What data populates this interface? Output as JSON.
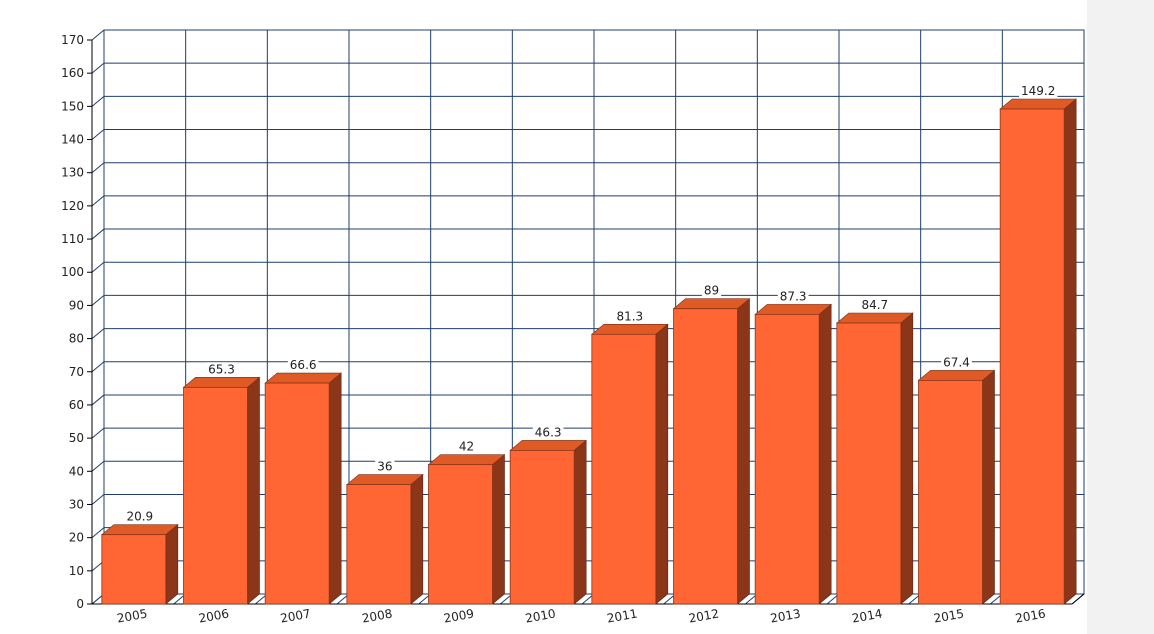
{
  "chart_data": {
    "type": "bar",
    "categories": [
      "2005",
      "2006",
      "2007",
      "2008",
      "2009",
      "2010",
      "2011",
      "2012",
      "2013",
      "2014",
      "2015",
      "2016"
    ],
    "values": [
      20.9,
      65.3,
      66.6,
      36,
      42,
      46.3,
      81.3,
      89,
      87.3,
      84.7,
      67.4,
      149.2
    ],
    "data_labels": [
      "20.9",
      "65.3",
      "66.6",
      "36",
      "42",
      "46.3",
      "81.3",
      "89",
      "87.3",
      "84.7",
      "67.4",
      "149.2"
    ],
    "ylim": [
      0,
      170
    ],
    "yticks": [
      "0",
      "10",
      "20",
      "30",
      "40",
      "50",
      "60",
      "70",
      "80",
      "90",
      "100",
      "110",
      "120",
      "130",
      "140",
      "150",
      "160",
      "170"
    ],
    "title": "",
    "xlabel": "",
    "ylabel": "",
    "grid": true,
    "style": "3d",
    "colors": {
      "bar_front": "#ff6633",
      "bar_top": "#e05a26",
      "bar_side": "#8b3519",
      "grid": "#1f3f6e",
      "axis": "#000000"
    }
  }
}
